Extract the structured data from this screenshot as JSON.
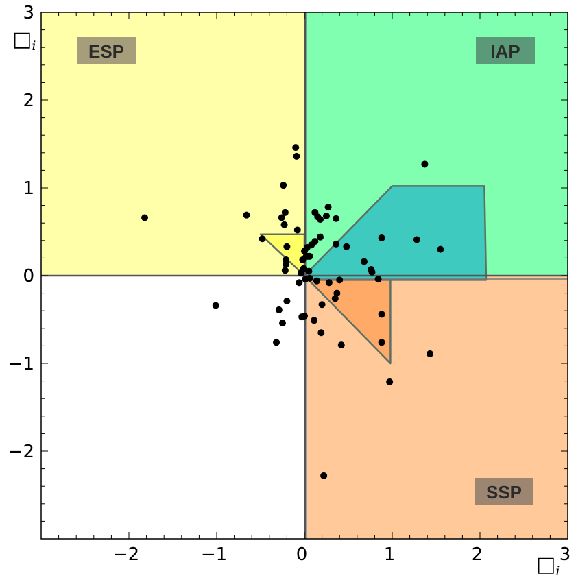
{
  "chart_data": {
    "type": "scatter",
    "title": "",
    "xlabel": "□",
    "xlabel_sub": "i",
    "ylabel": "□",
    "ylabel_sub": "i",
    "xlim": [
      -3,
      3
    ],
    "ylim": [
      -3,
      3
    ],
    "x_ticks": [
      -2,
      -1,
      0,
      1,
      2,
      3
    ],
    "y_ticks": [
      -2,
      -1,
      0,
      1,
      2,
      3
    ],
    "x_tick_labels": [
      "−2",
      "−1",
      "0",
      "1",
      "2",
      "3"
    ],
    "y_tick_labels": [
      "−2",
      "−1",
      "0",
      "1",
      "2",
      "3"
    ],
    "grid": false,
    "regions": [
      {
        "label": "ESP",
        "quadrant": "top-left",
        "color": "#ffffaa",
        "label_color": "#a69d7a"
      },
      {
        "label": "IAP",
        "quadrant": "top-right",
        "color": "#80ffb0",
        "label_color": "#5a9a78"
      },
      {
        "label": "SSP",
        "quadrant": "bottom-right",
        "color": "#ffc999",
        "label_color": "#9c8672"
      },
      {
        "label": "",
        "quadrant": "bottom-left",
        "color": "#ffffff",
        "label_color": ""
      }
    ],
    "polygons": [
      {
        "color": "#3ecabf",
        "points": [
          [
            0,
            0
          ],
          [
            1.0,
            1.02
          ],
          [
            2.05,
            1.02
          ],
          [
            2.07,
            -0.05
          ],
          [
            0.05,
            -0.05
          ]
        ]
      },
      {
        "color": "#ffaa66",
        "points": [
          [
            0,
            0
          ],
          [
            0.98,
            -1.0
          ],
          [
            0.98,
            -0.05
          ],
          [
            0.05,
            -0.05
          ]
        ]
      },
      {
        "color": "#ffff66",
        "points": [
          [
            0,
            0
          ],
          [
            -0.5,
            0.47
          ],
          [
            0,
            0.47
          ]
        ]
      }
    ],
    "points": [
      [
        -1.82,
        0.66
      ],
      [
        -1.01,
        -0.34
      ],
      [
        -0.66,
        0.69
      ],
      [
        -0.48,
        0.42
      ],
      [
        -0.32,
        -0.76
      ],
      [
        -0.29,
        -0.39
      ],
      [
        -0.26,
        0.66
      ],
      [
        -0.25,
        -0.54
      ],
      [
        -0.24,
        1.03
      ],
      [
        -0.23,
        0.58
      ],
      [
        -0.22,
        0.72
      ],
      [
        -0.22,
        0.06
      ],
      [
        -0.21,
        0.13
      ],
      [
        -0.21,
        0.18
      ],
      [
        -0.2,
        0.33
      ],
      [
        -0.2,
        -0.29
      ],
      [
        -0.1,
        1.46
      ],
      [
        -0.09,
        1.36
      ],
      [
        -0.08,
        0.52
      ],
      [
        -0.06,
        -0.08
      ],
      [
        -0.04,
        0.03
      ],
      [
        -0.03,
        -0.47
      ],
      [
        -0.02,
        0.18
      ],
      [
        -0.01,
        0.08
      ],
      [
        0.0,
        -0.46
      ],
      [
        0.0,
        0.28
      ],
      [
        0.01,
        -0.04
      ],
      [
        0.02,
        0.22
      ],
      [
        0.03,
        0.32
      ],
      [
        0.04,
        0.22
      ],
      [
        0.05,
        0.05
      ],
      [
        0.06,
        -0.03
      ],
      [
        0.06,
        0.22
      ],
      [
        0.08,
        0.35
      ],
      [
        0.11,
        -0.51
      ],
      [
        0.12,
        0.39
      ],
      [
        0.12,
        0.72
      ],
      [
        0.14,
        -0.06
      ],
      [
        0.15,
        0.67
      ],
      [
        0.18,
        0.64
      ],
      [
        0.18,
        0.44
      ],
      [
        0.19,
        -0.65
      ],
      [
        0.2,
        -0.33
      ],
      [
        0.22,
        -2.28
      ],
      [
        0.25,
        0.68
      ],
      [
        0.27,
        0.78
      ],
      [
        0.28,
        -0.08
      ],
      [
        0.35,
        -0.26
      ],
      [
        0.36,
        0.36
      ],
      [
        0.36,
        0.65
      ],
      [
        0.37,
        -0.2
      ],
      [
        0.4,
        -0.05
      ],
      [
        0.42,
        -0.79
      ],
      [
        0.48,
        0.33
      ],
      [
        0.68,
        0.16
      ],
      [
        0.76,
        0.07
      ],
      [
        0.77,
        0.04
      ],
      [
        0.84,
        -0.04
      ],
      [
        0.88,
        0.43
      ],
      [
        0.88,
        -0.44
      ],
      [
        0.88,
        -0.76
      ],
      [
        0.97,
        -1.21
      ],
      [
        1.28,
        0.41
      ],
      [
        1.37,
        1.27
      ],
      [
        1.43,
        -0.89
      ],
      [
        1.55,
        0.3
      ]
    ]
  }
}
